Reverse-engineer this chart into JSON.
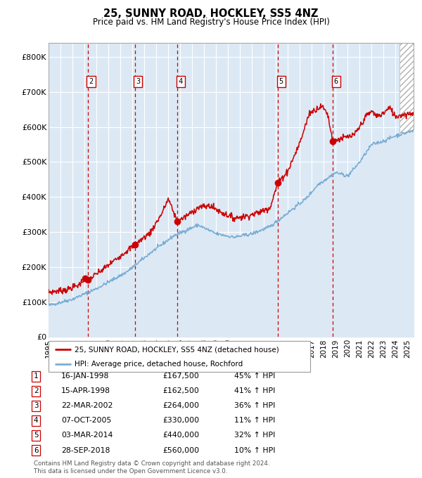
{
  "title": "25, SUNNY ROAD, HOCKLEY, SS5 4NZ",
  "subtitle": "Price paid vs. HM Land Registry's House Price Index (HPI)",
  "ylim": [
    0,
    840000
  ],
  "yticks": [
    0,
    100000,
    200000,
    300000,
    400000,
    500000,
    600000,
    700000,
    800000
  ],
  "ytick_labels": [
    "£0",
    "£100K",
    "£200K",
    "£300K",
    "£400K",
    "£500K",
    "£600K",
    "£700K",
    "£800K"
  ],
  "xlim_start": 1995.0,
  "xlim_end": 2025.5,
  "xtick_years": [
    1995,
    1996,
    1997,
    1998,
    1999,
    2000,
    2001,
    2002,
    2003,
    2004,
    2005,
    2006,
    2007,
    2008,
    2009,
    2010,
    2011,
    2012,
    2013,
    2014,
    2015,
    2016,
    2017,
    2018,
    2019,
    2020,
    2021,
    2022,
    2023,
    2024,
    2025
  ],
  "bg_color": "#dce9f5",
  "grid_color": "#ffffff",
  "red_line_color": "#cc0000",
  "blue_line_color": "#7aadd4",
  "dashed_line_color": "#cc0000",
  "sale_marker_color": "#cc0000",
  "legend_line1": "25, SUNNY ROAD, HOCKLEY, SS5 4NZ (detached house)",
  "legend_line2": "HPI: Average price, detached house, Rochford",
  "transactions": [
    {
      "num": 1,
      "date": 1998.04,
      "price": 167500,
      "show_vline": false,
      "show_box": false
    },
    {
      "num": 2,
      "date": 1998.29,
      "price": 162500,
      "show_vline": true,
      "show_box": true
    },
    {
      "num": 3,
      "date": 2002.22,
      "price": 264000,
      "show_vline": true,
      "show_box": true
    },
    {
      "num": 4,
      "date": 2005.76,
      "price": 330000,
      "show_vline": true,
      "show_box": true
    },
    {
      "num": 5,
      "date": 2014.17,
      "price": 440000,
      "show_vline": true,
      "show_box": true
    },
    {
      "num": 6,
      "date": 2018.75,
      "price": 560000,
      "show_vline": true,
      "show_box": true
    }
  ],
  "table_rows": [
    {
      "num": 1,
      "date": "16-JAN-1998",
      "price": "£167,500",
      "pct": "45% ↑ HPI"
    },
    {
      "num": 2,
      "date": "15-APR-1998",
      "price": "£162,500",
      "pct": "41% ↑ HPI"
    },
    {
      "num": 3,
      "date": "22-MAR-2002",
      "price": "£264,000",
      "pct": "36% ↑ HPI"
    },
    {
      "num": 4,
      "date": "07-OCT-2005",
      "price": "£330,000",
      "pct": "11% ↑ HPI"
    },
    {
      "num": 5,
      "date": "03-MAR-2014",
      "price": "£440,000",
      "pct": "32% ↑ HPI"
    },
    {
      "num": 6,
      "date": "28-SEP-2018",
      "price": "£560,000",
      "pct": "10% ↑ HPI"
    }
  ],
  "footnote1": "Contains HM Land Registry data © Crown copyright and database right 2024.",
  "footnote2": "This data is licensed under the Open Government Licence v3.0."
}
